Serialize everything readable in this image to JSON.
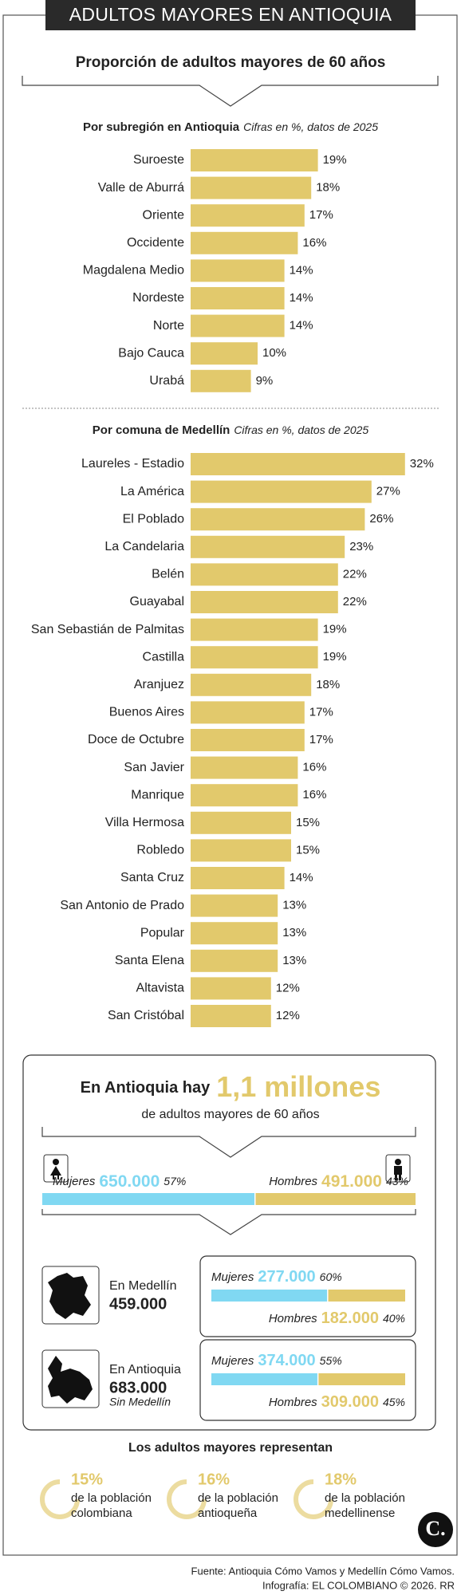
{
  "header": {
    "title": "ADULTOS MAYORES EN ANTIOQUIA",
    "subtitle": "Proporción de adultos mayores de 60 años"
  },
  "chart_data": [
    {
      "type": "bar",
      "orientation": "horizontal",
      "title": "Por subregión en Antioquia",
      "subtitle": "Cifras en %, datos de 2025",
      "categories": [
        "Suroeste",
        "Valle de Aburrá",
        "Oriente",
        "Occidente",
        "Magdalena Medio",
        "Nordeste",
        "Norte",
        "Bajo Cauca",
        "Urabá"
      ],
      "values": [
        19,
        18,
        17,
        16,
        14,
        14,
        14,
        10,
        9
      ],
      "value_labels": [
        "19%",
        "18%",
        "17%",
        "16%",
        "14%",
        "14%",
        "14%",
        "10%",
        "9%"
      ],
      "color": "#e2c96c"
    },
    {
      "type": "bar",
      "orientation": "horizontal",
      "title": "Por comuna de Medellín",
      "subtitle": "Cifras en %, datos de 2025",
      "categories": [
        "Laureles - Estadio",
        "La América",
        "El Poblado",
        "La Candelaria",
        "Belén",
        "Guayabal",
        "San Sebastián de Palmitas",
        "Castilla",
        "Aranjuez",
        "Buenos Aires",
        "Doce de Octubre",
        "San Javier",
        "Manrique",
        "Villa Hermosa",
        "Robledo",
        "Santa Cruz",
        "San Antonio de Prado",
        "Popular",
        "Santa Elena",
        "Altavista",
        "San Cristóbal"
      ],
      "values": [
        32,
        27,
        26,
        23,
        22,
        22,
        19,
        19,
        18,
        17,
        17,
        16,
        16,
        15,
        15,
        14,
        13,
        13,
        13,
        12,
        12
      ],
      "value_labels": [
        "32%",
        "27%",
        "26%",
        "23%",
        "22%",
        "22%",
        "19%",
        "19%",
        "18%",
        "17%",
        "17%",
        "16%",
        "16%",
        "15%",
        "15%",
        "14%",
        "13%",
        "13%",
        "13%",
        "12%",
        "12%"
      ],
      "color": "#e2c96c"
    }
  ],
  "summary": {
    "heading": "En Antioquia hay",
    "highlight": "1,1 millones",
    "caption": "de adultos mayores de 60 años",
    "total": {
      "women": {
        "label": "Mujeres",
        "count": "650.000",
        "share": {
          "value": 57,
          "label": "57%"
        },
        "color": "#80d8f2"
      },
      "men": {
        "label": "Hombres",
        "count": "491.000",
        "share": {
          "value": 43,
          "label": "43%"
        },
        "color": "#e2c96c"
      }
    },
    "regions": [
      {
        "name": "En Medellín",
        "count": "459.000",
        "women": {
          "label": "Mujeres",
          "count": "277.000",
          "share": {
            "value": 60,
            "label": "60%"
          }
        },
        "men": {
          "label": "Hombres",
          "count": "182.000",
          "share": {
            "value": 40,
            "label": "40%"
          }
        }
      },
      {
        "name": "En Antioquia",
        "count": "683.000",
        "note": "Sin Medellín",
        "women": {
          "label": "Mujeres",
          "count": "374.000",
          "share": {
            "value": 55,
            "label": "55%"
          }
        },
        "men": {
          "label": "Hombres",
          "count": "309.000",
          "share": {
            "value": 45,
            "label": "45%"
          }
        }
      }
    ],
    "represent": {
      "title": "Los adultos mayores representan",
      "items": [
        {
          "percent": "15%",
          "lines": [
            "de la población",
            "colombiana"
          ]
        },
        {
          "percent": "16%",
          "lines": [
            "de la población",
            "antioqueña"
          ]
        },
        {
          "percent": "18%",
          "lines": [
            "de la población",
            "medellinense"
          ]
        }
      ]
    }
  },
  "footer": {
    "logo": "C.",
    "source": "Fuente: Antioquia Cómo Vamos y Medellín Cómo Vamos.",
    "credit": "Infografía: EL COLOMBIANO © 2026. RR"
  }
}
